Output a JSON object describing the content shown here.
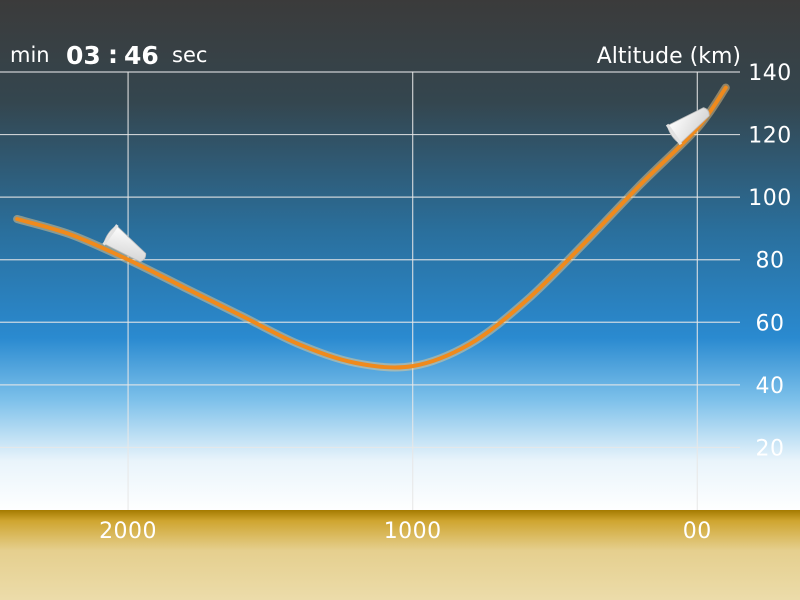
{
  "timer": {
    "min_label": "min",
    "minutes": "03",
    "separator": ":",
    "seconds": "46",
    "sec_label": "sec"
  },
  "colors": {
    "trajectory": "#f08a1c",
    "sky_top": "#3a3a3a",
    "sky_mid": "#2a86c8",
    "ground": "#c49a12",
    "ground_light": "#ead9a6",
    "grid": "#e8e8e8",
    "capsule": "#f4f4f4"
  },
  "icons": [
    "capsule-icon-left",
    "capsule-icon-right"
  ],
  "chart_data": {
    "type": "line",
    "title": "",
    "xlabel": "",
    "ylabel": "Altitude (km)",
    "x_direction": "decreasing to the right",
    "xlim": [
      2450,
      -150
    ],
    "ylim": [
      0,
      140
    ],
    "x_ticks": [
      2000,
      1000,
      0
    ],
    "x_tick_labels": [
      "2000",
      "1000",
      "00"
    ],
    "y_ticks": [
      20,
      40,
      60,
      80,
      100,
      120,
      140
    ],
    "y_tick_labels": [
      "20",
      "40",
      "60",
      "80",
      "100",
      "120",
      "140"
    ],
    "grid": true,
    "series": [
      {
        "x": [
          2390,
          2200,
          2000,
          1800,
          1600,
          1400,
          1200,
          1000,
          800,
          600,
          400,
          200,
          0,
          -100
        ],
        "y": [
          93,
          88,
          80,
          71,
          62,
          53,
          47,
          46,
          53,
          67,
          85,
          104,
          122,
          135
        ]
      }
    ],
    "markers": [
      {
        "name": "capsule-left",
        "x": 2000,
        "y": 84
      },
      {
        "name": "capsule-right",
        "x": 20,
        "y": 124
      }
    ]
  }
}
